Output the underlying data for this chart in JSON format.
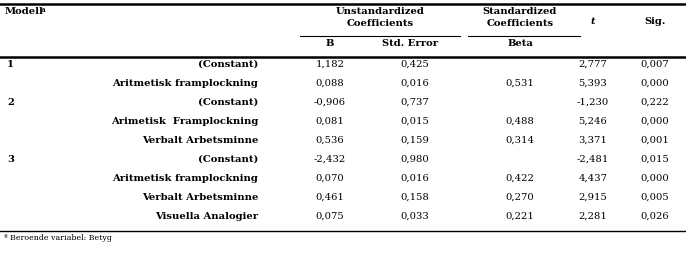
{
  "footnote": "ª Beroende variabel: Betyg",
  "rows": [
    {
      "model": "1",
      "label": "(Constant)",
      "B": "1,182",
      "SE": "0,425",
      "Beta": "",
      "t": "2,777",
      "sig": "0,007"
    },
    {
      "model": "",
      "label": "Aritmetisk framplockning",
      "B": "0,088",
      "SE": "0,016",
      "Beta": "0,531",
      "t": "5,393",
      "sig": "0,000"
    },
    {
      "model": "2",
      "label": "(Constant)",
      "B": "-0,906",
      "SE": "0,737",
      "Beta": "",
      "t": "-1,230",
      "sig": "0,222"
    },
    {
      "model": "",
      "label": "Arimetisk  Framplockning",
      "B": "0,081",
      "SE": "0,015",
      "Beta": "0,488",
      "t": "5,246",
      "sig": "0,000"
    },
    {
      "model": "",
      "label": "Verbalt Arbetsminne",
      "B": "0,536",
      "SE": "0,159",
      "Beta": "0,314",
      "t": "3,371",
      "sig": "0,001"
    },
    {
      "model": "3",
      "label": "(Constant)",
      "B": "-2,432",
      "SE": "0,980",
      "Beta": "",
      "t": "-2,481",
      "sig": "0,015"
    },
    {
      "model": "",
      "label": "Aritmetisk framplockning",
      "B": "0,070",
      "SE": "0,016",
      "Beta": "0,422",
      "t": "4,437",
      "sig": "0,000"
    },
    {
      "model": "",
      "label": "Verbalt Arbetsminne",
      "B": "0,461",
      "SE": "0,158",
      "Beta": "0,270",
      "t": "2,915",
      "sig": "0,005"
    },
    {
      "model": "",
      "label": "Visuella Analogier",
      "B": "0,075",
      "SE": "0,033",
      "Beta": "0,221",
      "t": "2,281",
      "sig": "0,026"
    }
  ],
  "col_x": {
    "model": 0.008,
    "label": 0.375,
    "B": 0.435,
    "SE": 0.535,
    "Beta": 0.635,
    "t": 0.755,
    "sig": 0.875
  },
  "bg_color": "#ffffff",
  "text_color": "#000000",
  "fs": 7.2
}
